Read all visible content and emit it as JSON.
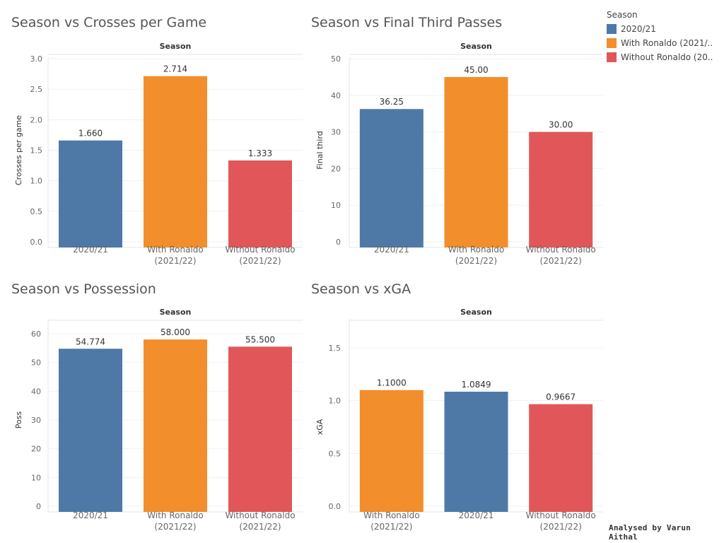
{
  "legend": {
    "title": "Season",
    "items": [
      {
        "label": "2020/21",
        "color": "#4e79a7"
      },
      {
        "label": "With Ronaldo (2021/..",
        "color": "#f28e2b"
      },
      {
        "label": "Without Ronaldo (20..",
        "color": "#e15759"
      }
    ]
  },
  "credit": "Analysed by Varun Aithal",
  "chart_data": [
    {
      "type": "bar",
      "title": "Season vs Crosses per Game",
      "header": "Season",
      "ylabel": "Crosses per game",
      "ylim": [
        0,
        3.0
      ],
      "yticks": [
        "0.0",
        "0.5",
        "1.0",
        "1.5",
        "2.0",
        "2.5",
        "3.0"
      ],
      "categories": [
        "2020/21",
        "With Ronaldo\n(2021/22)",
        "Without Ronaldo\n(2021/22)"
      ],
      "values": [
        1.66,
        2.714,
        1.333
      ],
      "labels": [
        "1.660",
        "2.714",
        "1.333"
      ],
      "colors": [
        "#4e79a7",
        "#f28e2b",
        "#e15759"
      ]
    },
    {
      "type": "bar",
      "title": "Season vs Final Third Passes",
      "header": "Season",
      "ylabel": "Final third",
      "ylim": [
        0,
        50
      ],
      "yticks": [
        "0",
        "10",
        "20",
        "30",
        "40",
        "50"
      ],
      "categories": [
        "2020/21",
        "With Ronaldo\n(2021/22)",
        "Without Ronaldo\n(2021/22)"
      ],
      "values": [
        36.25,
        45.0,
        30.0
      ],
      "labels": [
        "36.25",
        "45.00",
        "30.00"
      ],
      "colors": [
        "#4e79a7",
        "#f28e2b",
        "#e15759"
      ]
    },
    {
      "type": "bar",
      "title": "Season vs Possession",
      "header": "Season",
      "ylabel": "Poss",
      "ylim": [
        0,
        60
      ],
      "yticks": [
        "0",
        "10",
        "20",
        "30",
        "40",
        "50",
        "60"
      ],
      "categories": [
        "2020/21",
        "With Ronaldo\n(2021/22)",
        "Without Ronaldo\n(2021/22)"
      ],
      "values": [
        54.774,
        58.0,
        55.5
      ],
      "labels": [
        "54.774",
        "58.000",
        "55.500"
      ],
      "colors": [
        "#4e79a7",
        "#f28e2b",
        "#e15759"
      ]
    },
    {
      "type": "bar",
      "title": "Season vs xGA",
      "header": "Season",
      "ylabel": "xGA",
      "ylim": [
        0,
        1.5
      ],
      "yticks": [
        "0.0",
        "0.5",
        "1.0",
        "1.5"
      ],
      "categories": [
        "With Ronaldo\n(2021/22)",
        "2020/21",
        "Without Ronaldo\n(2021/22)"
      ],
      "values": [
        1.1,
        1.0849,
        0.9667
      ],
      "labels": [
        "1.1000",
        "1.0849",
        "0.9667"
      ],
      "colors": [
        "#f28e2b",
        "#4e79a7",
        "#e15759"
      ]
    }
  ]
}
